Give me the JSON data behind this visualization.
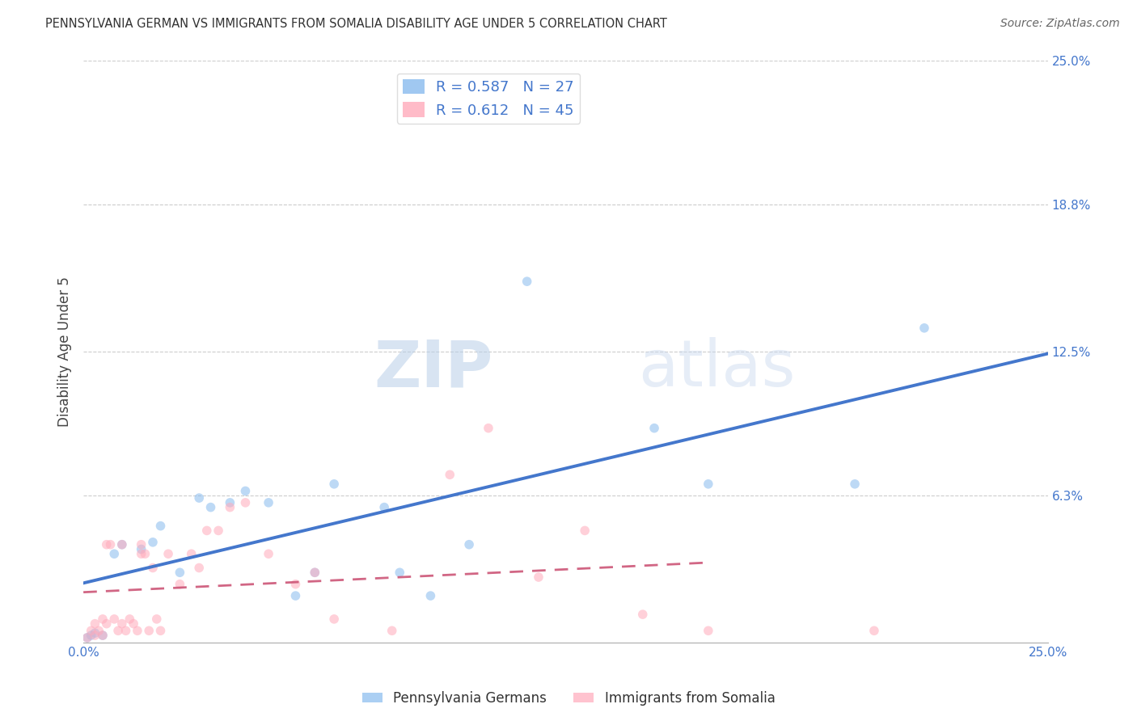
{
  "title": "PENNSYLVANIA GERMAN VS IMMIGRANTS FROM SOMALIA DISABILITY AGE UNDER 5 CORRELATION CHART",
  "source": "Source: ZipAtlas.com",
  "ylabel": "Disability Age Under 5",
  "xlim": [
    0.0,
    0.25
  ],
  "ylim": [
    0.0,
    0.25
  ],
  "ytick_labels": [
    "6.3%",
    "12.5%",
    "18.8%",
    "25.0%"
  ],
  "ytick_positions": [
    0.063,
    0.125,
    0.188,
    0.25
  ],
  "grid_color": "#cccccc",
  "background_color": "#ffffff",
  "blue_color": "#88bbee",
  "pink_color": "#ffaabb",
  "blue_line_color": "#4477cc",
  "pink_line_color": "#cc5577",
  "tick_label_color": "#4477cc",
  "R_blue": 0.587,
  "N_blue": 27,
  "R_pink": 0.612,
  "N_pink": 45,
  "blue_points_x": [
    0.001,
    0.002,
    0.003,
    0.005,
    0.008,
    0.01,
    0.015,
    0.018,
    0.02,
    0.025,
    0.03,
    0.033,
    0.038,
    0.042,
    0.048,
    0.055,
    0.06,
    0.065,
    0.078,
    0.082,
    0.09,
    0.1,
    0.115,
    0.148,
    0.162,
    0.2,
    0.218
  ],
  "blue_points_y": [
    0.002,
    0.003,
    0.004,
    0.003,
    0.038,
    0.042,
    0.04,
    0.043,
    0.05,
    0.03,
    0.062,
    0.058,
    0.06,
    0.065,
    0.06,
    0.02,
    0.03,
    0.068,
    0.058,
    0.03,
    0.02,
    0.042,
    0.155,
    0.092,
    0.068,
    0.068,
    0.135
  ],
  "pink_points_x": [
    0.001,
    0.002,
    0.003,
    0.003,
    0.004,
    0.005,
    0.005,
    0.006,
    0.006,
    0.007,
    0.008,
    0.009,
    0.01,
    0.01,
    0.011,
    0.012,
    0.013,
    0.014,
    0.015,
    0.015,
    0.016,
    0.017,
    0.018,
    0.019,
    0.02,
    0.022,
    0.025,
    0.028,
    0.03,
    0.032,
    0.035,
    0.038,
    0.042,
    0.048,
    0.055,
    0.06,
    0.065,
    0.08,
    0.095,
    0.105,
    0.118,
    0.13,
    0.145,
    0.162,
    0.205
  ],
  "pink_points_y": [
    0.002,
    0.005,
    0.003,
    0.008,
    0.005,
    0.003,
    0.01,
    0.008,
    0.042,
    0.042,
    0.01,
    0.005,
    0.008,
    0.042,
    0.005,
    0.01,
    0.008,
    0.005,
    0.038,
    0.042,
    0.038,
    0.005,
    0.032,
    0.01,
    0.005,
    0.038,
    0.025,
    0.038,
    0.032,
    0.048,
    0.048,
    0.058,
    0.06,
    0.038,
    0.025,
    0.03,
    0.01,
    0.005,
    0.072,
    0.092,
    0.028,
    0.048,
    0.012,
    0.005,
    0.005
  ],
  "watermark_zip": "ZIP",
  "watermark_atlas": "atlas",
  "marker_size": 70,
  "marker_alpha": 0.55,
  "blue_line_start_x": 0.0,
  "blue_line_end_x": 0.25,
  "pink_line_start_x": 0.0,
  "pink_line_end_x": 0.162
}
